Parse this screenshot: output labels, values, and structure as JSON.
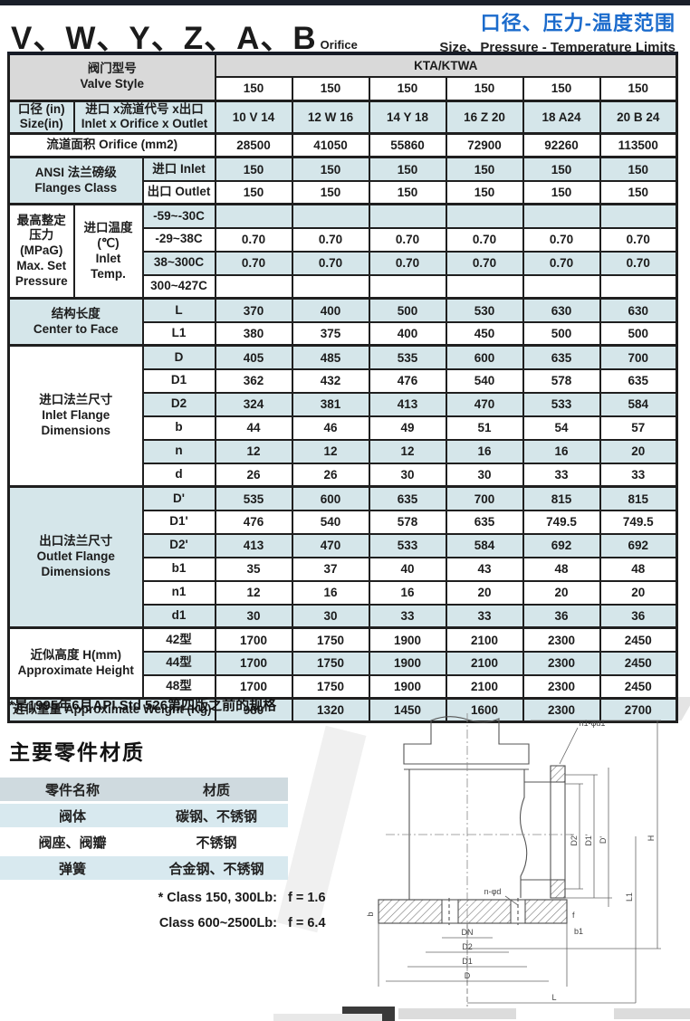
{
  "header": {
    "title_main": "V、W、Y、Z、A、B",
    "title_suffix": "Orifice",
    "right_title_cn": "口径、压力-温度范围",
    "right_title_en": "Size、Pressure - Temperature Limits"
  },
  "spec_table": {
    "valve_style_label": "阀门型号\nValve Style",
    "series_name": "KTA/KTWA",
    "class_values": [
      "150",
      "150",
      "150",
      "150",
      "150",
      "150"
    ],
    "size_label": "口径 (in)\nSize(in)",
    "size_sub_label": "进口 x流道代号  x出口\nInlet x Orifice x Outlet",
    "size_values": [
      "10 V 14",
      "12 W 16",
      "14 Y 18",
      "16 Z 20",
      "18 A24",
      "20 B 24"
    ],
    "orifice_label": "流道面积   Orifice (mm2)",
    "orifice_values": [
      "28500",
      "41050",
      "55860",
      "72900",
      "92260",
      "113500"
    ],
    "ansi_label": "ANSI  法兰磅级\nFlanges Class",
    "ansi_inlet_label": "进口  Inlet",
    "ansi_inlet_values": [
      "150",
      "150",
      "150",
      "150",
      "150",
      "150"
    ],
    "ansi_outlet_label": "出口  Outlet",
    "ansi_outlet_values": [
      "150",
      "150",
      "150",
      "150",
      "150",
      "150"
    ],
    "pressure_label": "最高整定\n压力\n(MPaG)\nMax. Set\nPressure",
    "inlet_temp_label": "进口温度\n(℃)\nInlet\nTemp.",
    "temp_rows": [
      {
        "label": "-59~-30C",
        "values": [
          "",
          "",
          "",
          "",
          "",
          ""
        ]
      },
      {
        "label": "-29~38C",
        "values": [
          "0.70",
          "0.70",
          "0.70",
          "0.70",
          "0.70",
          "0.70"
        ]
      },
      {
        "label": "38~300C",
        "values": [
          "0.70",
          "0.70",
          "0.70",
          "0.70",
          "0.70",
          "0.70"
        ]
      },
      {
        "label": "300~427C",
        "values": [
          "",
          "",
          "",
          "",
          "",
          ""
        ]
      }
    ],
    "center_to_face_label": "结构长度\nCenter to Face",
    "ctf_rows": [
      {
        "label": "L",
        "values": [
          "370",
          "400",
          "500",
          "530",
          "630",
          "630"
        ]
      },
      {
        "label": "L1",
        "values": [
          "380",
          "375",
          "400",
          "450",
          "500",
          "500"
        ]
      }
    ],
    "inlet_flange_label": "进口法兰尺寸\nInlet Flange\nDimensions",
    "inlet_flange_rows": [
      {
        "label": "D",
        "values": [
          "405",
          "485",
          "535",
          "600",
          "635",
          "700"
        ]
      },
      {
        "label": "D1",
        "values": [
          "362",
          "432",
          "476",
          "540",
          "578",
          "635"
        ]
      },
      {
        "label": "D2",
        "values": [
          "324",
          "381",
          "413",
          "470",
          "533",
          "584"
        ]
      },
      {
        "label": "b",
        "values": [
          "44",
          "46",
          "49",
          "51",
          "54",
          "57"
        ]
      },
      {
        "label": "n",
        "values": [
          "12",
          "12",
          "12",
          "16",
          "16",
          "20"
        ]
      },
      {
        "label": "d",
        "values": [
          "26",
          "26",
          "30",
          "30",
          "33",
          "33"
        ]
      }
    ],
    "outlet_flange_label": "出口法兰尺寸\nOutlet Flange\nDimensions",
    "outlet_flange_rows": [
      {
        "label": "D'",
        "values": [
          "535",
          "600",
          "635",
          "700",
          "815",
          "815"
        ]
      },
      {
        "label": "D1'",
        "values": [
          "476",
          "540",
          "578",
          "635",
          "749.5",
          "749.5"
        ]
      },
      {
        "label": "D2'",
        "values": [
          "413",
          "470",
          "533",
          "584",
          "692",
          "692"
        ]
      },
      {
        "label": "b1",
        "values": [
          "35",
          "37",
          "40",
          "43",
          "48",
          "48"
        ]
      },
      {
        "label": "n1",
        "values": [
          "12",
          "16",
          "16",
          "20",
          "20",
          "20"
        ]
      },
      {
        "label": "d1",
        "values": [
          "30",
          "30",
          "33",
          "33",
          "36",
          "36"
        ]
      }
    ],
    "height_label": "近似高度  H(mm)\nApproximate Height",
    "height_rows": [
      {
        "label": "42型",
        "values": [
          "1700",
          "1750",
          "1900",
          "2100",
          "2300",
          "2450"
        ]
      },
      {
        "label": "44型",
        "values": [
          "1700",
          "1750",
          "1900",
          "2100",
          "2300",
          "2450"
        ]
      },
      {
        "label": "48型",
        "values": [
          "1700",
          "1750",
          "1900",
          "2100",
          "2300",
          "2450"
        ]
      }
    ],
    "weight_label": "近似重量 Approximate Weight (Kg)",
    "weight_values": [
      "980",
      "1320",
      "1450",
      "1600",
      "2300",
      "2700"
    ]
  },
  "footnote": "*是1995年6月API Std 526第四版之前的规格",
  "materials": {
    "heading": "主要零件材质",
    "col1_header": "零件名称",
    "col2_header": "材质",
    "rows": [
      {
        "part": "阀体",
        "material": "碳钢、不锈钢"
      },
      {
        "part": "阀座、阀瓣",
        "material": "不锈钢"
      },
      {
        "part": "弹簧",
        "material": "合金钢、不锈钢"
      }
    ],
    "notes": [
      {
        "label": "* Class 150, 300Lb:",
        "value": "f = 1.6"
      },
      {
        "label": "Class 600~2500Lb:",
        "value": "f = 6.4"
      }
    ]
  },
  "drawing": {
    "labels": {
      "bolts_outlet": "n1-φd1",
      "d2p": "D2'",
      "d1p": "D1'",
      "dp": "D'",
      "l1": "L1",
      "h": "H",
      "f": "f",
      "b1": "b1",
      "b": "b",
      "bolts_inlet": "n-φd",
      "dn": "DN",
      "d2": "D2",
      "d1": "D1",
      "d": "D",
      "l": "L"
    }
  },
  "colors": {
    "accent_blue_text": "#1b6bcc",
    "row_blue": "#d5e6ea",
    "header_gray": "#d9d9d9",
    "top_bar": "#1a1f2a"
  }
}
